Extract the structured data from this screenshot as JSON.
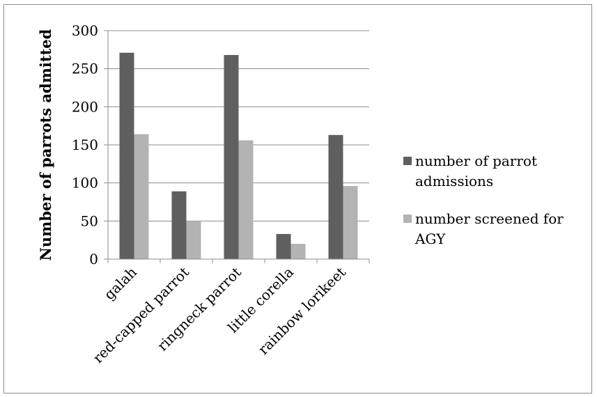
{
  "chart_data": {
    "type": "bar",
    "title": "",
    "xlabel": "",
    "ylabel": "Number of parrots admitted",
    "categories": [
      "galah",
      "red-capped parrot",
      "ringneck parrot",
      "little corella",
      "rainbow lorikeet"
    ],
    "series": [
      {
        "name": "number of parrot admissions",
        "color": "#5f5f5f",
        "values": [
          271,
          89,
          268,
          33,
          163
        ]
      },
      {
        "name": "number screened for AGY",
        "color": "#b3b3b3",
        "values": [
          164,
          50,
          156,
          20,
          96
        ]
      }
    ],
    "ylim": [
      0,
      300
    ],
    "yticks": [
      0,
      50,
      100,
      150,
      200,
      250,
      300
    ],
    "grid": true,
    "legend_position": "right"
  }
}
